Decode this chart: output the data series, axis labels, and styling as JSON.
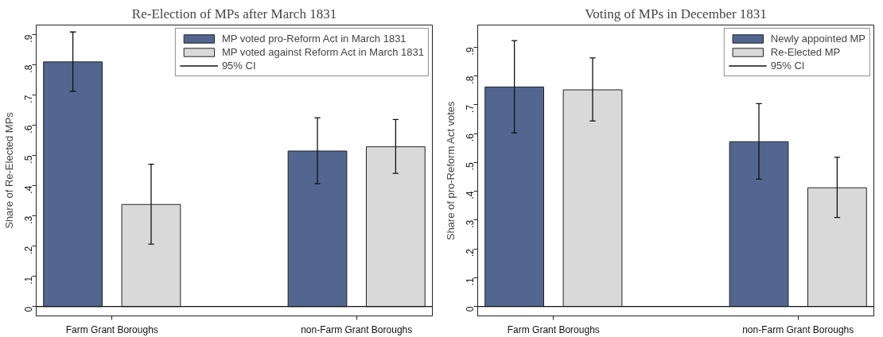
{
  "chart_data": [
    {
      "type": "bar",
      "title": "Re-Election of MPs after March 1831",
      "ylabel": "Share of Re-Elected MPs",
      "categories": [
        "Farm Grant Boroughs",
        "non-Farm Grant Boroughs"
      ],
      "series": [
        {
          "name": "MP voted pro-Reform Act in March 1831",
          "color": "#526690",
          "values": [
            0.81,
            0.515
          ],
          "errors": [
            [
              0.713,
              0.909
            ],
            [
              0.407,
              0.625
            ]
          ]
        },
        {
          "name": "MP voted against Reform Act in March 1831",
          "color": "#d9d9d9",
          "values": [
            0.338,
            0.529
          ],
          "errors": [
            [
              0.207,
              0.471
            ],
            [
              0.441,
              0.619
            ]
          ]
        }
      ],
      "ylim": [
        -0.031,
        0.932
      ],
      "yticks": [
        {
          "value": 0,
          "label": "0"
        },
        {
          "value": 0.1,
          "label": ".1"
        },
        {
          "value": 0.2,
          "label": ".2"
        },
        {
          "value": 0.3,
          "label": ".3"
        },
        {
          "value": 0.4,
          "label": ".4"
        },
        {
          "value": 0.5,
          "label": ".5"
        },
        {
          "value": 0.6,
          "label": ".6"
        },
        {
          "value": 0.7,
          "label": ".7"
        },
        {
          "value": 0.8,
          "label": ".8"
        },
        {
          "value": 0.9,
          "label": ".9"
        }
      ],
      "ref_lines": [
        {
          "axis": "y",
          "value": 0,
          "label": null
        }
      ],
      "annotations": [
        "95% CI"
      ],
      "legend": "top right",
      "grid": false
    },
    {
      "type": "bar",
      "title": "Voting of MPs in December 1831",
      "ylabel": "Share of pro-Reform Act votes",
      "categories": [
        "Farm Grant Boroughs",
        "non-Farm Grant Boroughs"
      ],
      "series": [
        {
          "name": "Newly appointed MP",
          "color": "#526690",
          "values": [
            0.762,
            0.572
          ],
          "errors": [
            [
              0.603,
              0.923
            ],
            [
              0.442,
              0.704
            ]
          ]
        },
        {
          "name": "Re-Elected MP",
          "color": "#d9d9d9",
          "values": [
            0.752,
            0.412
          ],
          "errors": [
            [
              0.644,
              0.863
            ],
            [
              0.309,
              0.518
            ]
          ]
        }
      ],
      "ylim": [
        -0.033,
        0.977
      ],
      "yticks": [
        {
          "value": 0,
          "label": "0"
        },
        {
          "value": 0.1,
          "label": ".1"
        },
        {
          "value": 0.2,
          "label": ".2"
        },
        {
          "value": 0.3,
          "label": ".3"
        },
        {
          "value": 0.4,
          "label": ".4"
        },
        {
          "value": 0.5,
          "label": ".5"
        },
        {
          "value": 0.6,
          "label": ".6"
        },
        {
          "value": 0.7,
          "label": ".7"
        },
        {
          "value": 0.8,
          "label": ".8"
        },
        {
          "value": 0.9,
          "label": ".9"
        }
      ],
      "ref_lines": [
        {
          "axis": "y",
          "value": 0,
          "label": null
        }
      ],
      "annotations": [
        "95% CI"
      ],
      "legend": "top right",
      "grid": false
    }
  ]
}
